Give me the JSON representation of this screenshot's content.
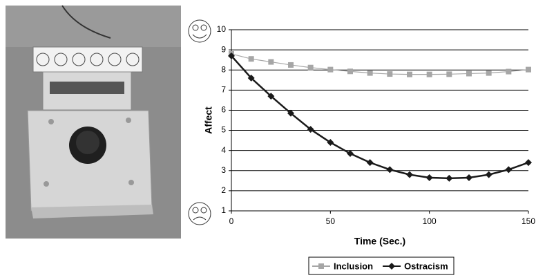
{
  "chart_data": {
    "type": "line",
    "x_label": "Time (Sec.)",
    "y_label": "Affect",
    "x": [
      0,
      10,
      20,
      30,
      40,
      50,
      60,
      70,
      80,
      90,
      100,
      110,
      120,
      130,
      140,
      150
    ],
    "series": [
      {
        "name": "Inclusion",
        "color": "#a6a6a6",
        "marker": "square",
        "values": [
          8.8,
          8.55,
          8.4,
          8.25,
          8.12,
          8.02,
          7.93,
          7.85,
          7.8,
          7.78,
          7.78,
          7.79,
          7.82,
          7.85,
          7.92,
          8.02
        ]
      },
      {
        "name": "Ostracism",
        "color": "#1a1a1a",
        "marker": "diamond",
        "values": [
          8.7,
          7.6,
          6.7,
          5.85,
          5.05,
          4.4,
          3.85,
          3.4,
          3.05,
          2.8,
          2.65,
          2.62,
          2.65,
          2.8,
          3.05,
          3.4
        ]
      }
    ],
    "xlim": [
      0,
      150
    ],
    "xticks": [
      0,
      50,
      100,
      150
    ],
    "ylim": [
      1,
      10
    ],
    "yticks": [
      1,
      2,
      3,
      4,
      5,
      6,
      7,
      8,
      9,
      10
    ],
    "grid": true,
    "legend": "bottom"
  }
}
